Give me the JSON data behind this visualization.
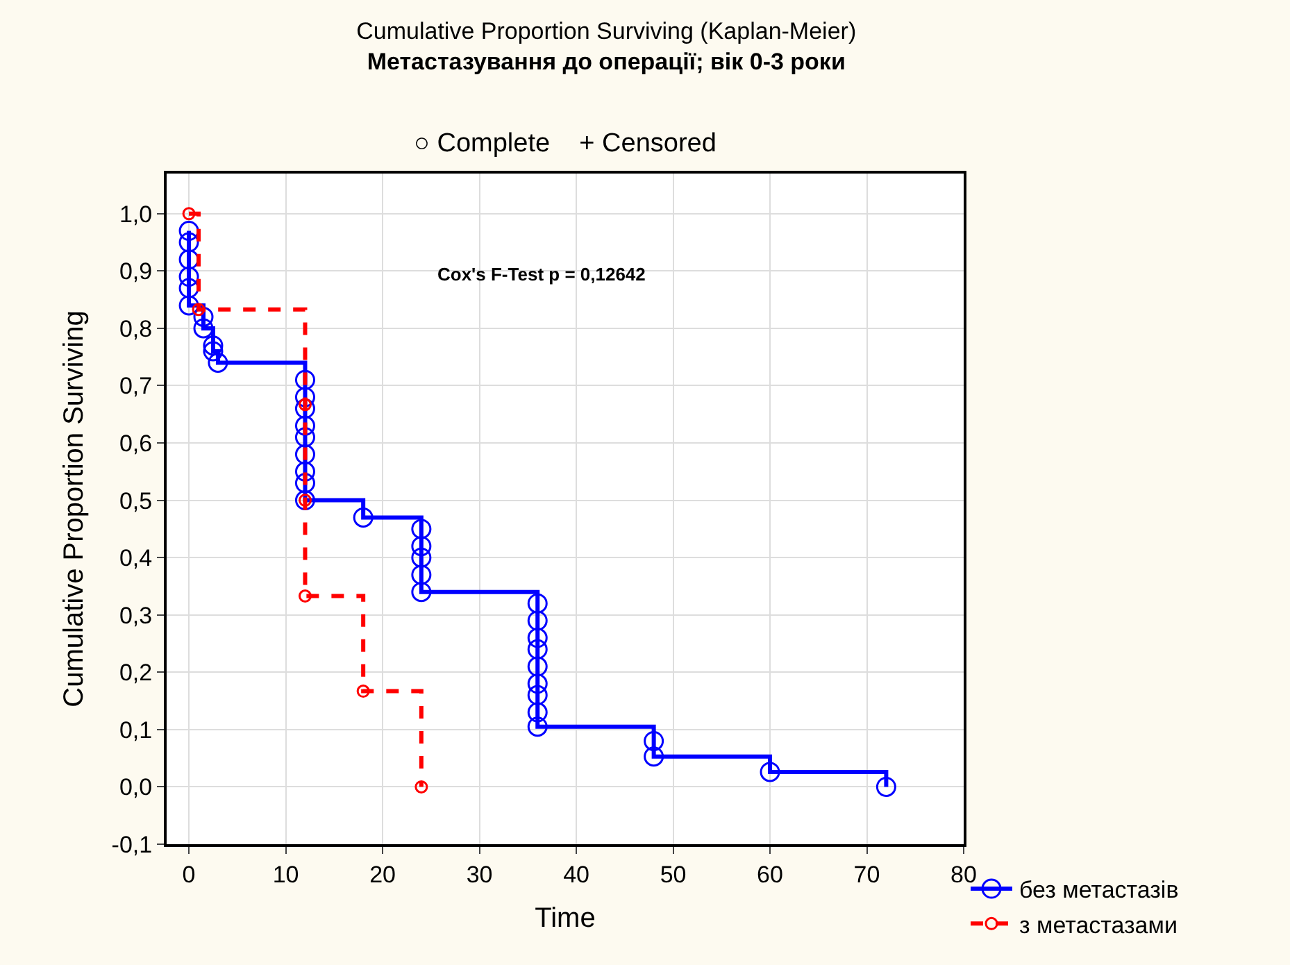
{
  "chart_data": {
    "type": "step",
    "title": "Cumulative Proportion Surviving (Kaplan-Meier)",
    "subtitle": "Метастазування до операції; вік 0-3 роки",
    "xlabel": "Time",
    "ylabel": "Cumulative Proportion Surviving",
    "xlim": [
      -2.3,
      80
    ],
    "xticks": [
      0,
      10,
      20,
      30,
      40,
      50,
      60,
      70,
      80
    ],
    "ylim": [
      -0.1,
      1.07
    ],
    "yticks": [
      {
        "value": -0.1,
        "label": "-0,1"
      },
      {
        "value": 0,
        "label": "0,0"
      },
      {
        "value": 0.1,
        "label": "0,1"
      },
      {
        "value": 0.2,
        "label": "0,2"
      },
      {
        "value": 0.3,
        "label": "0,3"
      },
      {
        "value": 0.4,
        "label": "0,4"
      },
      {
        "value": 0.5,
        "label": "0,5"
      },
      {
        "value": 0.6,
        "label": "0,6"
      },
      {
        "value": 0.7,
        "label": "0,7"
      },
      {
        "value": 0.8,
        "label": "0,8"
      },
      {
        "value": 0.9,
        "label": "0,9"
      },
      {
        "value": 1.0,
        "label": "1,0"
      }
    ],
    "grid": true,
    "legend": "bottom right",
    "marker": "circle",
    "annotations": [
      "○ Complete    + Censored",
      "Cox's F-Test p = 0,12642"
    ],
    "series": [
      {
        "name": "без метастазів",
        "color": "#0000ff",
        "line_style": "solid",
        "x": [
          0,
          0,
          0,
          0,
          0,
          0,
          1.5,
          1.5,
          2.5,
          2.5,
          3,
          12,
          12,
          12,
          12,
          12,
          12,
          12,
          12,
          12,
          18,
          24,
          24,
          24,
          24,
          24,
          36,
          36,
          36,
          36,
          36,
          36,
          36,
          36,
          36,
          48,
          48,
          60,
          72
        ],
        "values": [
          0.97,
          0.95,
          0.92,
          0.89,
          0.87,
          0.84,
          0.82,
          0.8,
          0.77,
          0.76,
          0.74,
          0.71,
          0.68,
          0.66,
          0.63,
          0.61,
          0.58,
          0.55,
          0.53,
          0.5,
          0.47,
          0.45,
          0.42,
          0.4,
          0.37,
          0.34,
          0.32,
          0.29,
          0.26,
          0.24,
          0.21,
          0.18,
          0.16,
          0.13,
          0.105,
          0.08,
          0.053,
          0.026,
          0.0
        ]
      },
      {
        "name": "з метастазами",
        "color": "#ff0000",
        "line_style": "dashed",
        "x": [
          0,
          1,
          12,
          12,
          12,
          18,
          24
        ],
        "values": [
          1.0,
          0.833,
          0.667,
          0.5,
          0.333,
          0.167,
          0.0
        ]
      }
    ]
  }
}
